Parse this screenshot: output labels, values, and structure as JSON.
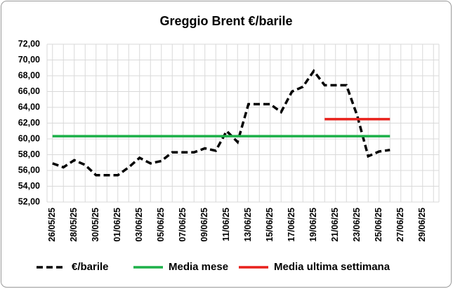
{
  "chart_data": {
    "type": "line",
    "title": "Greggio Brent €/barile",
    "categories": [
      "26/05/25",
      null,
      "28/05/25",
      null,
      "30/05/25",
      null,
      "01/06/25",
      null,
      "03/06/25",
      null,
      "05/06/25",
      null,
      "07/06/25",
      null,
      "09/06/25",
      null,
      "11/06/25",
      null,
      "13/06/25",
      null,
      "15/06/25",
      null,
      "17/06/25",
      null,
      "19/06/25",
      null,
      "21/06/25",
      null,
      "23/06/25",
      null,
      "25/06/25",
      null,
      "27/06/25",
      null,
      "29/06/25",
      null
    ],
    "series": [
      {
        "name": "€/barile",
        "color": "#000000",
        "dashed": true,
        "values": [
          56.9,
          56.4,
          57.3,
          56.7,
          55.4,
          55.4,
          55.4,
          56.4,
          57.6,
          56.9,
          57.2,
          58.3,
          58.3,
          58.3,
          58.8,
          58.5,
          61.0,
          59.6,
          64.4,
          64.4,
          64.4,
          63.4,
          66.0,
          66.6,
          68.6,
          66.8,
          66.8,
          66.8,
          62.9,
          57.8,
          58.4,
          58.6,
          null,
          null,
          null,
          null
        ]
      },
      {
        "name": "Media mese",
        "color": "#1db049",
        "dashed": false,
        "values": [
          60.35,
          60.35,
          60.35,
          60.35,
          60.35,
          60.35,
          60.35,
          60.35,
          60.35,
          60.35,
          60.35,
          60.35,
          60.35,
          60.35,
          60.35,
          60.35,
          60.35,
          60.35,
          60.35,
          60.35,
          60.35,
          60.35,
          60.35,
          60.35,
          60.35,
          60.35,
          60.35,
          60.35,
          60.35,
          60.35,
          60.35,
          60.35,
          null,
          null,
          null,
          null
        ]
      },
      {
        "name": "Media ultima settimana",
        "color": "#e8211c",
        "dashed": false,
        "values": [
          null,
          null,
          null,
          null,
          null,
          null,
          null,
          null,
          null,
          null,
          null,
          null,
          null,
          null,
          null,
          null,
          null,
          null,
          null,
          null,
          null,
          null,
          null,
          null,
          null,
          62.5,
          62.5,
          62.5,
          62.5,
          62.5,
          62.5,
          62.5,
          null,
          null,
          null,
          null
        ]
      }
    ],
    "ylim": [
      52,
      72
    ],
    "yticks": [
      {
        "value": 52,
        "label": "52,00"
      },
      {
        "value": 54,
        "label": "54,00"
      },
      {
        "value": 56,
        "label": "56,00"
      },
      {
        "value": 58,
        "label": "58,00"
      },
      {
        "value": 60,
        "label": "60,00"
      },
      {
        "value": 62,
        "label": "62,00"
      },
      {
        "value": 64,
        "label": "64,00"
      },
      {
        "value": 66,
        "label": "66,00"
      },
      {
        "value": 68,
        "label": "68,00"
      },
      {
        "value": 70,
        "label": "70,00"
      },
      {
        "value": 72,
        "label": "72,00"
      }
    ],
    "grid": true,
    "legend": "bottom"
  }
}
